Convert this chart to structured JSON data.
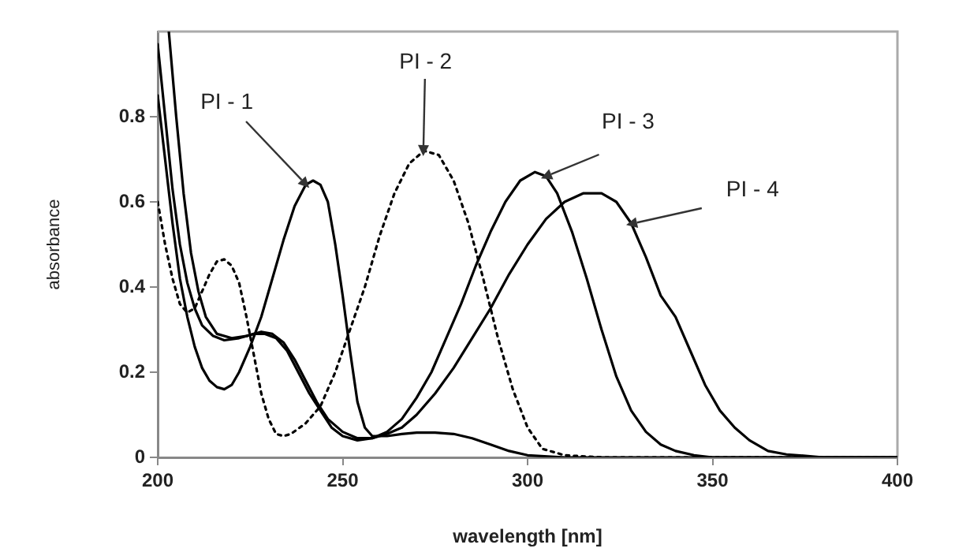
{
  "chart_data": {
    "type": "line",
    "xlabel": "wavelength [nm]",
    "ylabel": "absorbance",
    "xlim": [
      200,
      400
    ],
    "xticks": [
      200,
      250,
      300,
      350,
      400
    ],
    "ylim": [
      0,
      1
    ],
    "yticks": [
      0,
      0.2,
      0.4,
      0.6,
      0.8
    ],
    "grid": false,
    "legend": false,
    "marker": "none",
    "series": [
      {
        "color": "#000000",
        "line_style": "solid",
        "x": [
          200,
          202,
          204,
          206,
          208,
          210,
          212,
          214,
          216,
          218,
          220,
          222,
          225,
          228,
          231,
          234,
          237,
          240,
          242,
          244,
          246,
          248,
          250,
          252,
          254,
          256,
          258,
          262,
          266,
          270,
          275,
          280,
          285,
          290,
          295,
          300,
          310,
          400
        ],
        "values": [
          0.85,
          0.7,
          0.55,
          0.42,
          0.33,
          0.26,
          0.21,
          0.18,
          0.165,
          0.16,
          0.17,
          0.2,
          0.26,
          0.33,
          0.42,
          0.51,
          0.59,
          0.64,
          0.65,
          0.64,
          0.6,
          0.5,
          0.38,
          0.25,
          0.13,
          0.07,
          0.05,
          0.05,
          0.055,
          0.058,
          0.058,
          0.055,
          0.045,
          0.03,
          0.015,
          0.005,
          0,
          0
        ]
      },
      {
        "color": "#000000",
        "line_style": "dotted",
        "x": [
          200,
          202,
          204,
          206,
          208,
          210,
          212,
          214,
          216,
          218,
          220,
          222,
          224,
          226,
          228,
          230,
          232,
          234,
          236,
          240,
          244,
          248,
          252,
          256,
          260,
          264,
          268,
          272,
          276,
          280,
          284,
          288,
          292,
          296,
          300,
          304,
          310,
          320,
          400
        ],
        "values": [
          0.6,
          0.5,
          0.42,
          0.36,
          0.34,
          0.35,
          0.39,
          0.43,
          0.46,
          0.465,
          0.45,
          0.41,
          0.33,
          0.24,
          0.15,
          0.09,
          0.055,
          0.05,
          0.055,
          0.08,
          0.12,
          0.2,
          0.3,
          0.4,
          0.52,
          0.62,
          0.69,
          0.72,
          0.71,
          0.65,
          0.55,
          0.42,
          0.28,
          0.16,
          0.07,
          0.02,
          0.005,
          0,
          0
        ]
      },
      {
        "color": "#000000",
        "line_style": "solid",
        "x": [
          200,
          202,
          204,
          206,
          208,
          210,
          212,
          215,
          218,
          222,
          226,
          229,
          232,
          235,
          238,
          241,
          244,
          247,
          250,
          254,
          258,
          262,
          266,
          270,
          274,
          278,
          282,
          286,
          290,
          294,
          298,
          302,
          305,
          308,
          312,
          316,
          320,
          324,
          328,
          332,
          336,
          340,
          345,
          350,
          400
        ],
        "values": [
          0.97,
          0.8,
          0.63,
          0.5,
          0.41,
          0.35,
          0.31,
          0.285,
          0.275,
          0.28,
          0.29,
          0.29,
          0.28,
          0.25,
          0.2,
          0.15,
          0.11,
          0.07,
          0.05,
          0.04,
          0.045,
          0.06,
          0.09,
          0.14,
          0.2,
          0.28,
          0.36,
          0.45,
          0.53,
          0.6,
          0.65,
          0.67,
          0.66,
          0.62,
          0.53,
          0.42,
          0.3,
          0.19,
          0.11,
          0.06,
          0.03,
          0.015,
          0.005,
          0,
          0
        ]
      },
      {
        "color": "#000000",
        "line_style": "solid",
        "x": [
          203,
          205,
          207,
          209,
          211,
          213,
          216,
          220,
          224,
          228,
          231,
          234,
          237,
          240,
          243,
          246,
          250,
          254,
          258,
          262,
          266,
          270,
          275,
          280,
          285,
          290,
          295,
          300,
          305,
          310,
          315,
          320,
          324,
          328,
          332,
          336,
          340,
          344,
          348,
          352,
          356,
          360,
          365,
          370,
          380,
          400
        ],
        "values": [
          1.0,
          0.8,
          0.62,
          0.48,
          0.39,
          0.33,
          0.29,
          0.28,
          0.285,
          0.295,
          0.29,
          0.27,
          0.23,
          0.18,
          0.13,
          0.09,
          0.06,
          0.045,
          0.045,
          0.055,
          0.07,
          0.1,
          0.15,
          0.21,
          0.28,
          0.35,
          0.43,
          0.5,
          0.56,
          0.6,
          0.62,
          0.62,
          0.6,
          0.55,
          0.47,
          0.38,
          0.33,
          0.25,
          0.17,
          0.11,
          0.07,
          0.04,
          0.015,
          0.007,
          0,
          0
        ]
      }
    ],
    "annotations": [
      {
        "text": "PI - 1",
        "x": 240,
        "y": 0.64
      },
      {
        "text": "PI - 2",
        "x": 272,
        "y": 0.72
      },
      {
        "text": "PI - 3",
        "x": 305,
        "y": 0.66
      },
      {
        "text": "PI - 4",
        "x": 328,
        "y": 0.55
      }
    ]
  }
}
